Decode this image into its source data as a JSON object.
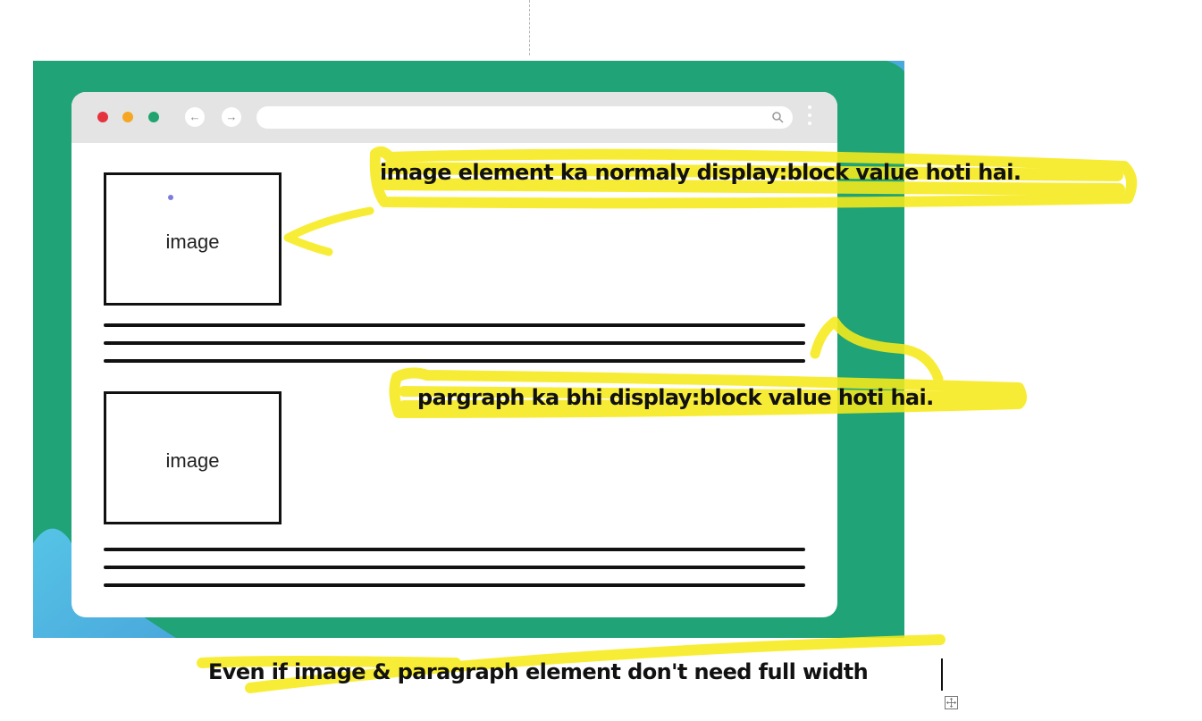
{
  "illustration": {
    "browser_window": {
      "window_dots": [
        "red",
        "yellow",
        "green"
      ],
      "nav_icons": [
        "back-arrow-icon",
        "forward-arrow-icon"
      ],
      "address_bar_icon": "search-icon",
      "menu_icon": "kebab-menu-icon"
    },
    "image_boxes": [
      {
        "label": "image"
      },
      {
        "label": "image"
      }
    ],
    "colors": {
      "background": "#1fa377",
      "corner_shape": "#5cbfe0",
      "window_bar": "#e4e4e4"
    }
  },
  "annotations": {
    "note_image": "image element ka normaly display:block   value hoti hai.",
    "note_paragraph": "pargraph ka bhi display:block value hoti hai.",
    "note_width": "Even if image & paragraph element don't need full width",
    "highlight_color": "#f7ea1a"
  },
  "editor": {
    "table_handle_icon": "table-move-icon"
  }
}
